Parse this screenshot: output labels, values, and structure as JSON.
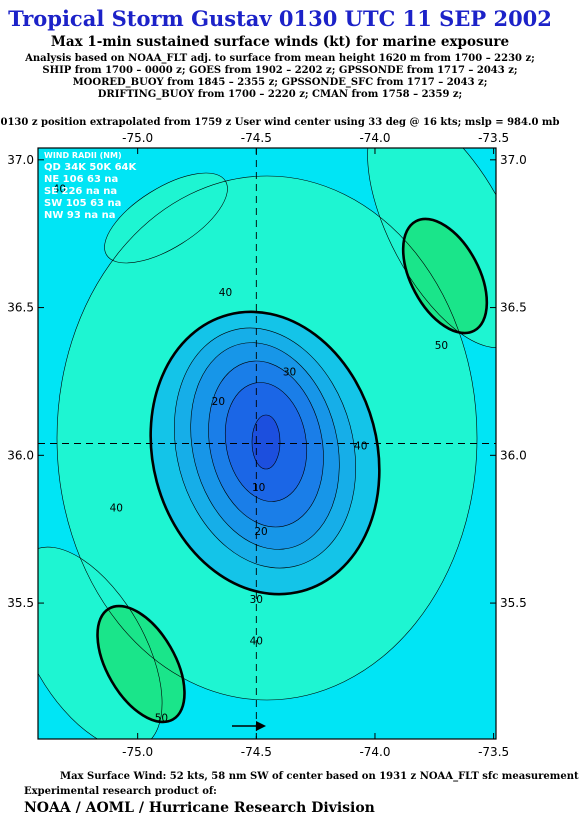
{
  "header": {
    "title": "Tropical Storm Gustav 0130 UTC 11 SEP 2002",
    "subtitle": "Max 1-min sustained surface winds (kt) for marine exposure",
    "analysis_lines": [
      "Analysis based on  NOAA_FLT adj. to surface from mean height 1620 m from 1700 – 2230 z;",
      "SHIP from 1700 – 0000 z;  GOES from 1902 – 2202 z;  GPSSONDE from 1717 – 2043 z;",
      "MOORED_BUOY from 1845 – 2355 z;  GPSSONDE_SFC from 1717 – 2043 z;",
      "DRIFTING_BUOY from 1700 – 2220 z;  CMAN from 1758 – 2359 z;"
    ],
    "position_line": "0130 z position extrapolated from 1759 z User wind center using 33 deg @ 16 kts; mslp = 984.0 mb"
  },
  "wind_radii": {
    "title": "WIND RADII (NM)",
    "header": "QD 34K 50K 64K",
    "rows": [
      "NE 106  63  na",
      "SE 226  na  na",
      "SW 105  63  na",
      "NW  93  na  na"
    ]
  },
  "chart_data": {
    "type": "contour",
    "variable": "Max 1-min sustained surface winds (kt)",
    "x_ticks": [
      "-75.0",
      "-74.5",
      "-74.0",
      "-73.5"
    ],
    "x_tick_values": [
      -75.0,
      -74.5,
      -74.0,
      -73.5
    ],
    "y_ticks": [
      "37.0",
      "36.5",
      "36.0",
      "35.5"
    ],
    "y_tick_values": [
      37.0,
      36.5,
      36.0,
      35.5
    ],
    "xlim": [
      -75.42,
      -73.49
    ],
    "ylim": [
      35.04,
      37.04
    ],
    "center": {
      "lon": -74.5,
      "lat": 36.04
    },
    "contour_labels": [
      {
        "text": "40",
        "lon": -74.63,
        "lat": 36.55
      },
      {
        "text": "30",
        "lon": -74.36,
        "lat": 36.28
      },
      {
        "text": "20",
        "lon": -74.66,
        "lat": 36.18
      },
      {
        "text": "40",
        "lon": -74.06,
        "lat": 36.03
      },
      {
        "text": "10",
        "lon": -74.49,
        "lat": 35.89
      },
      {
        "text": "40",
        "lon": -75.09,
        "lat": 35.82
      },
      {
        "text": "20",
        "lon": -74.48,
        "lat": 35.74
      },
      {
        "text": "30",
        "lon": -74.5,
        "lat": 35.51
      },
      {
        "text": "40",
        "lon": -74.5,
        "lat": 35.37
      },
      {
        "text": "50",
        "lon": -73.72,
        "lat": 36.37
      },
      {
        "text": "50",
        "lon": -74.9,
        "lat": 35.11
      },
      {
        "text": "40",
        "lon": -75.33,
        "lat": 36.9
      }
    ],
    "colors": {
      "background": "#00e5f5",
      "w40": "#1ef5d2",
      "w50": "#1ae58a",
      "w30": "#14c4e8",
      "w25": "#16aee8",
      "w20": "#1796e8",
      "w15": "#1a7ee8",
      "w10": "#1b66e6",
      "w5": "#1c4fde",
      "title": "#1c22c8"
    },
    "motion_arrow_icon": "right-arrow-icon"
  },
  "footer": {
    "max_wind": "Max Surface Wind: 52 kts, 58 nm SW of center based on 1931 z NOAA_FLT sfc measurement",
    "credit": "Experimental research product of:",
    "org": "NOAA / AOML / Hurricane Research Division"
  }
}
